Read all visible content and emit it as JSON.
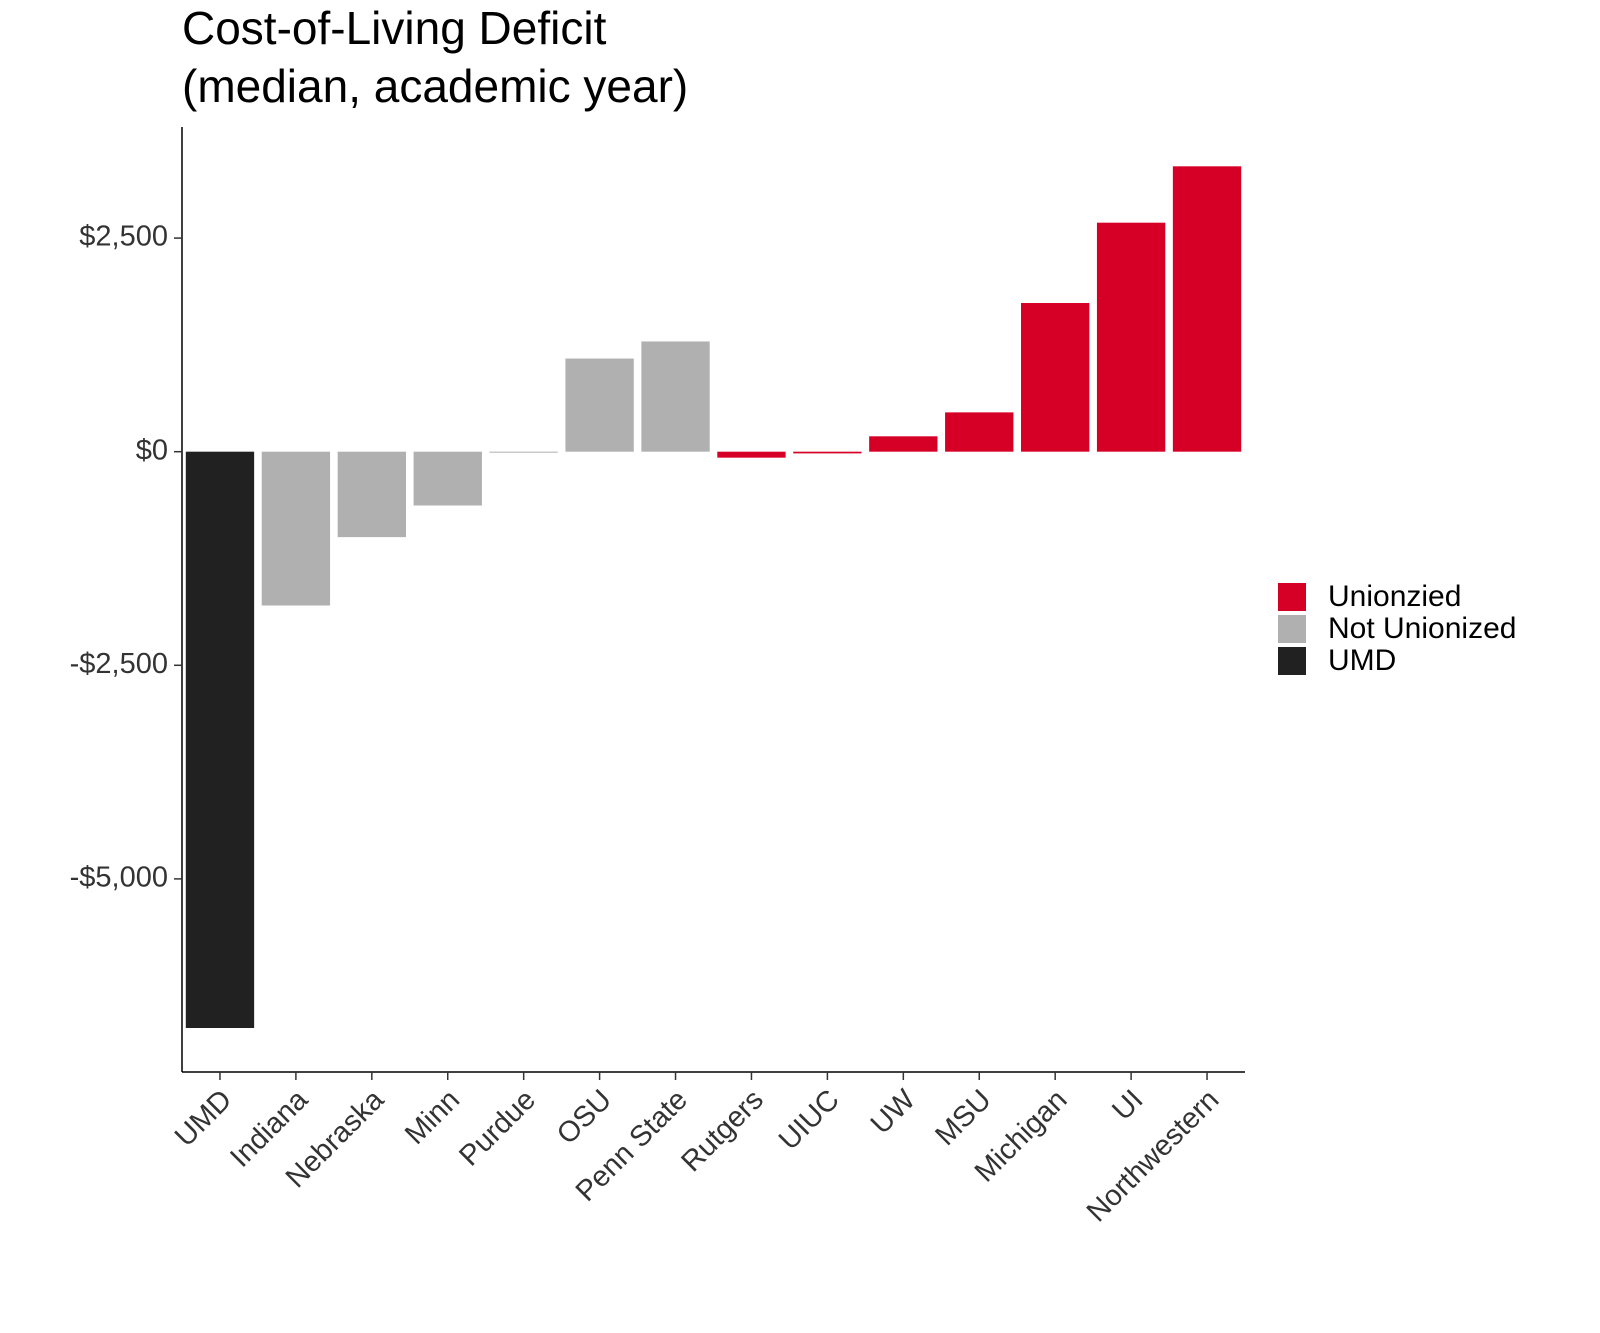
{
  "chart_data": {
    "type": "bar",
    "title": [
      "Cost-of-Living Deficit",
      "(median, academic year)"
    ],
    "categories": [
      "UMD",
      "Indiana",
      "Nebraska",
      "Minn",
      "Purdue",
      "OSU",
      "Penn State",
      "Rutgers",
      "UIUC",
      "UW",
      "MSU",
      "Michigan",
      "UI",
      "Northwestern"
    ],
    "series": [
      {
        "name": "Unionzied",
        "color": "#d60026",
        "values": [
          null,
          null,
          null,
          null,
          null,
          null,
          null,
          -70,
          -20,
          180,
          460,
          1740,
          2680,
          3340
        ]
      },
      {
        "name": "Not Unionized",
        "color": "#b0b0b0",
        "values": [
          null,
          -1800,
          -1000,
          -630,
          -10,
          1090,
          1290,
          null,
          null,
          null,
          null,
          null,
          null,
          null
        ]
      },
      {
        "name": "UMD",
        "color": "#212121",
        "values": [
          -6745,
          null,
          null,
          null,
          null,
          null,
          null,
          null,
          null,
          null,
          null,
          null,
          null,
          null
        ]
      }
    ],
    "ylim": [
      -7260,
      3800
    ],
    "yticks": [
      {
        "value": -5000,
        "label": "-$5,000"
      },
      {
        "value": -2500,
        "label": "-$2,500"
      },
      {
        "value": 0,
        "label": "$0"
      },
      {
        "value": 2500,
        "label": "$2,500"
      }
    ],
    "grid": false,
    "legend": "right"
  }
}
